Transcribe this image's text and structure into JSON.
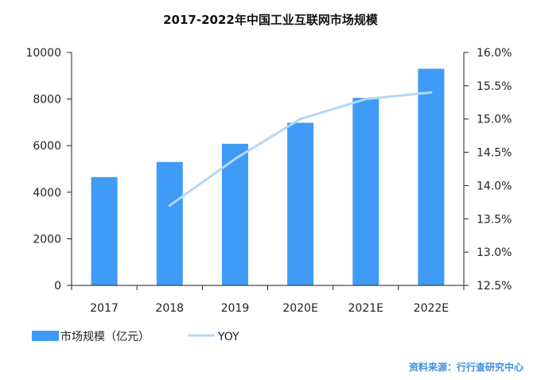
{
  "chart_data": {
    "type": "bar",
    "title": "2017-2022年中国工业互联网市场规模",
    "categories": [
      "2017",
      "2018",
      "2019",
      "2020E",
      "2021E",
      "2022E"
    ],
    "series": [
      {
        "name": "市场规模（亿元）",
        "type": "bar",
        "axis": "left",
        "values": [
          4650,
          5300,
          6080,
          6980,
          8050,
          9300
        ]
      },
      {
        "name": "YOY",
        "type": "line",
        "axis": "right",
        "values": [
          null,
          0.137,
          0.144,
          0.15,
          0.153,
          0.154
        ]
      }
    ],
    "y_left": {
      "min": 0,
      "max": 10000,
      "ticks": [
        "0",
        "2000",
        "4000",
        "6000",
        "8000",
        "10000"
      ]
    },
    "y_right": {
      "min": 0.125,
      "max": 0.16,
      "ticks": [
        "12.5%",
        "13.0%",
        "13.5%",
        "14.0%",
        "14.5%",
        "15.0%",
        "15.5%",
        "16.0%"
      ]
    },
    "legend_position": "bottom-left",
    "grid": false,
    "colors": {
      "bar": "#3f9bf5",
      "line": "#b3d8f5",
      "axis": "#222222"
    }
  },
  "source_note": "资料来源：行行查研究中心"
}
